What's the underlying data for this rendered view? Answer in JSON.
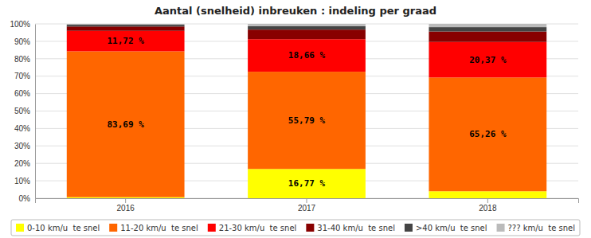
{
  "chart_data": {
    "type": "bar",
    "title": "Aantal (snelheid) inbreuken : indeling per graad",
    "categories": [
      "2016",
      "2017",
      "2018"
    ],
    "stacked": true,
    "series": [
      {
        "name": "0-10 km/u  te snel",
        "color": "#FFFF00",
        "values": [
          0.59,
          16.77,
          4.0
        ],
        "value_labels": [
          null,
          "16,77 %",
          null
        ]
      },
      {
        "name": "11-20 km/u  te snel",
        "color": "#FF6600",
        "values": [
          83.69,
          55.79,
          65.26
        ],
        "value_labels": [
          "83,69 %",
          "55,79 %",
          "65,26 %"
        ]
      },
      {
        "name": "21-30 km/u  te snel",
        "color": "#FF0000",
        "values": [
          11.72,
          18.66,
          20.37
        ],
        "value_labels": [
          "11,72 %",
          "18,66 %",
          "20,37 %"
        ]
      },
      {
        "name": "31-40 km/u  te snel",
        "color": "#880000",
        "values": [
          2.5,
          5.5,
          6.0
        ]
      },
      {
        "name": ">40 km/u  te snel",
        "color": "#444444",
        "values": [
          1.0,
          2.0,
          2.5
        ]
      },
      {
        "name": "??? km/u  te snel",
        "color": "#BBBBBB",
        "values": [
          0.5,
          1.28,
          1.87
        ]
      }
    ],
    "ylim": [
      0,
      100
    ],
    "yticks": [
      {
        "value": 0,
        "label": "0%"
      },
      {
        "value": 10,
        "label": "10%"
      },
      {
        "value": 20,
        "label": "20%"
      },
      {
        "value": 30,
        "label": "30%"
      },
      {
        "value": 40,
        "label": "40%"
      },
      {
        "value": 50,
        "label": "50%"
      },
      {
        "value": 60,
        "label": "60%"
      },
      {
        "value": 70,
        "label": "70%"
      },
      {
        "value": 80,
        "label": "80%"
      },
      {
        "value": 90,
        "label": "90%"
      },
      {
        "value": 100,
        "label": "100%"
      }
    ],
    "grid": true,
    "legend": "bottom"
  }
}
